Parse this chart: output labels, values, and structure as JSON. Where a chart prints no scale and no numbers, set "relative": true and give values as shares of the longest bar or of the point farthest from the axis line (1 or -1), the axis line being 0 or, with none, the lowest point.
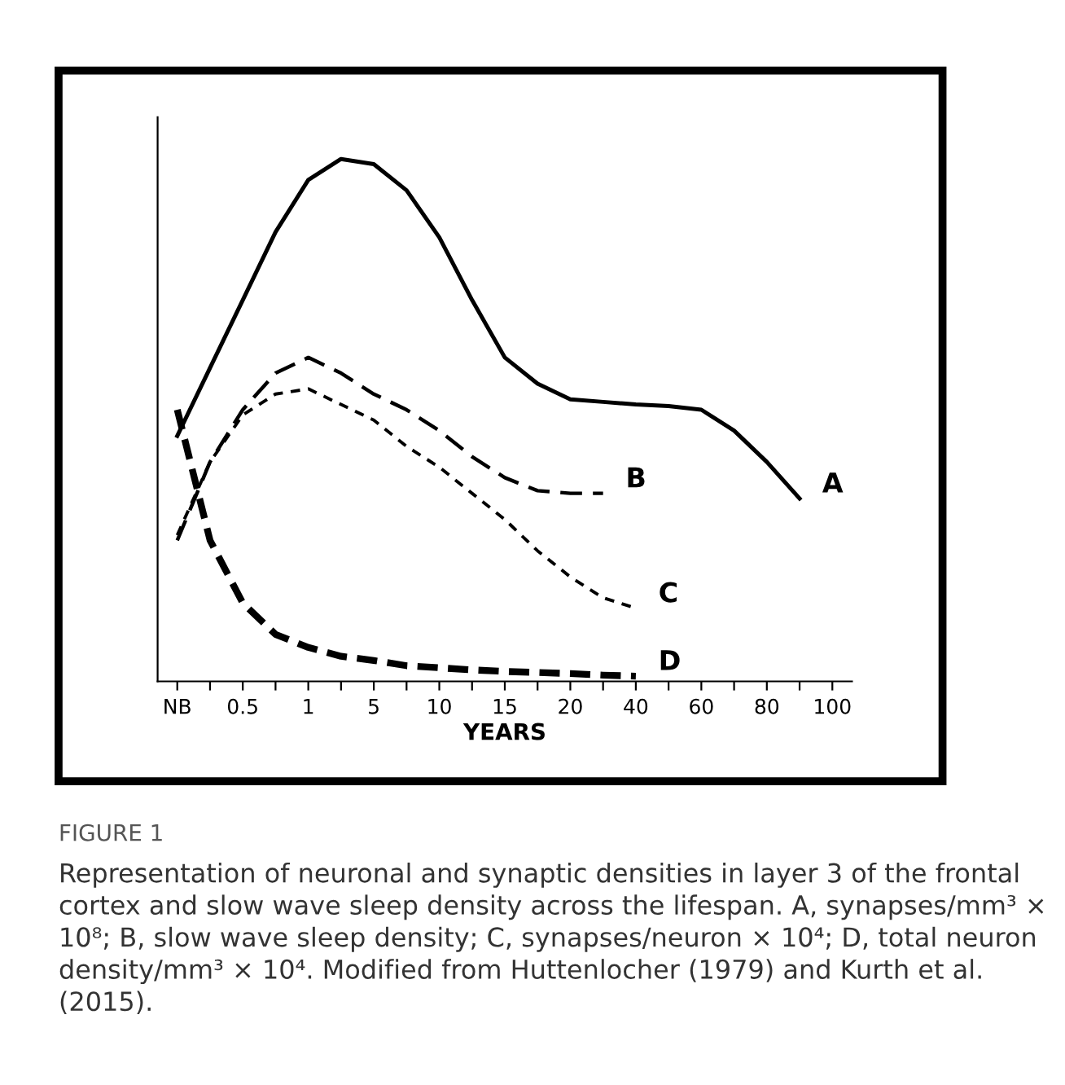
{
  "chart_data": {
    "type": "line",
    "relative": true,
    "xlabel": "YEARS",
    "categories": [
      "NB",
      null,
      "0.5",
      null,
      "1",
      null,
      "5",
      null,
      "10",
      null,
      "15",
      null,
      "20",
      null,
      "40",
      null,
      "60",
      null,
      "80",
      null,
      "100"
    ],
    "series": [
      {
        "name": "A",
        "color": "#000000",
        "line_style": "solid",
        "values": [
          0.47,
          0.6,
          0.73,
          0.86,
          0.96,
          1.0,
          0.99,
          0.94,
          0.85,
          0.73,
          0.62,
          0.57,
          0.54,
          0.535,
          0.53,
          0.527,
          0.52,
          0.48,
          0.42,
          0.35,
          null
        ]
      },
      {
        "name": "B",
        "color": "#000000",
        "line_style": "dashed",
        "values": [
          0.27,
          0.42,
          0.52,
          0.59,
          0.62,
          0.59,
          0.55,
          0.52,
          0.48,
          0.43,
          0.39,
          0.365,
          0.36,
          0.36,
          null,
          null,
          null,
          null,
          null,
          null,
          null
        ]
      },
      {
        "name": "C",
        "color": "#000000",
        "line_style": "dotted",
        "values": [
          0.28,
          0.42,
          0.51,
          0.55,
          0.56,
          0.53,
          0.5,
          0.45,
          0.41,
          0.36,
          0.31,
          0.25,
          0.2,
          0.16,
          0.14,
          null,
          null,
          null,
          null,
          null,
          null
        ]
      },
      {
        "name": "D",
        "color": "#000000",
        "line_style": "dashed",
        "values": [
          0.52,
          0.27,
          0.15,
          0.09,
          0.065,
          0.048,
          0.04,
          0.03,
          0.026,
          0.022,
          0.019,
          0.017,
          0.015,
          0.012,
          0.01,
          null,
          null,
          null,
          null,
          null,
          null
        ]
      }
    ],
    "grid": false,
    "annotations": [
      "FIGURE 1",
      "Representation of neuronal and synaptic densities in layer 3 of the frontal cortex and slow wave sleep density across the lifespan. A, synapses/mm³ × 10⁸; B, slow wave sleep density; C, synapses/neuron × 10⁴; D, total neuron density/mm³ × 10⁴. Modified from Huttenlocher (1979) and Kurth et al. (2015)."
    ]
  }
}
